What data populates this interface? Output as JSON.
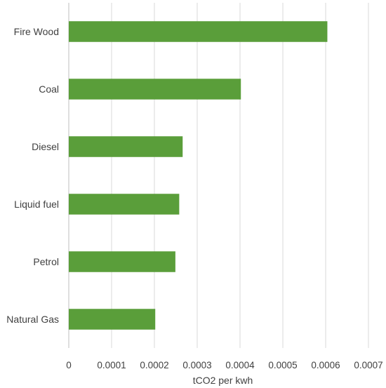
{
  "chart_data": {
    "type": "bar",
    "orientation": "horizontal",
    "categories": [
      "Fire Wood",
      "Coal",
      "Diesel",
      "Liquid fuel",
      "Petrol",
      "Natural Gas"
    ],
    "values": [
      0.000604,
      0.000402,
      0.000266,
      0.000258,
      0.000249,
      0.000202
    ],
    "title": "",
    "xlabel": "tCO2 per kwh",
    "ylabel": "",
    "xlim": [
      0,
      0.0007
    ],
    "xticks": [
      "0",
      "0.0001",
      "0.0002",
      "0.0003",
      "0.0004",
      "0.0005",
      "0.0006",
      "0.0007"
    ],
    "grid": true,
    "legend": "none",
    "bar_color": "#5a9e3a"
  }
}
